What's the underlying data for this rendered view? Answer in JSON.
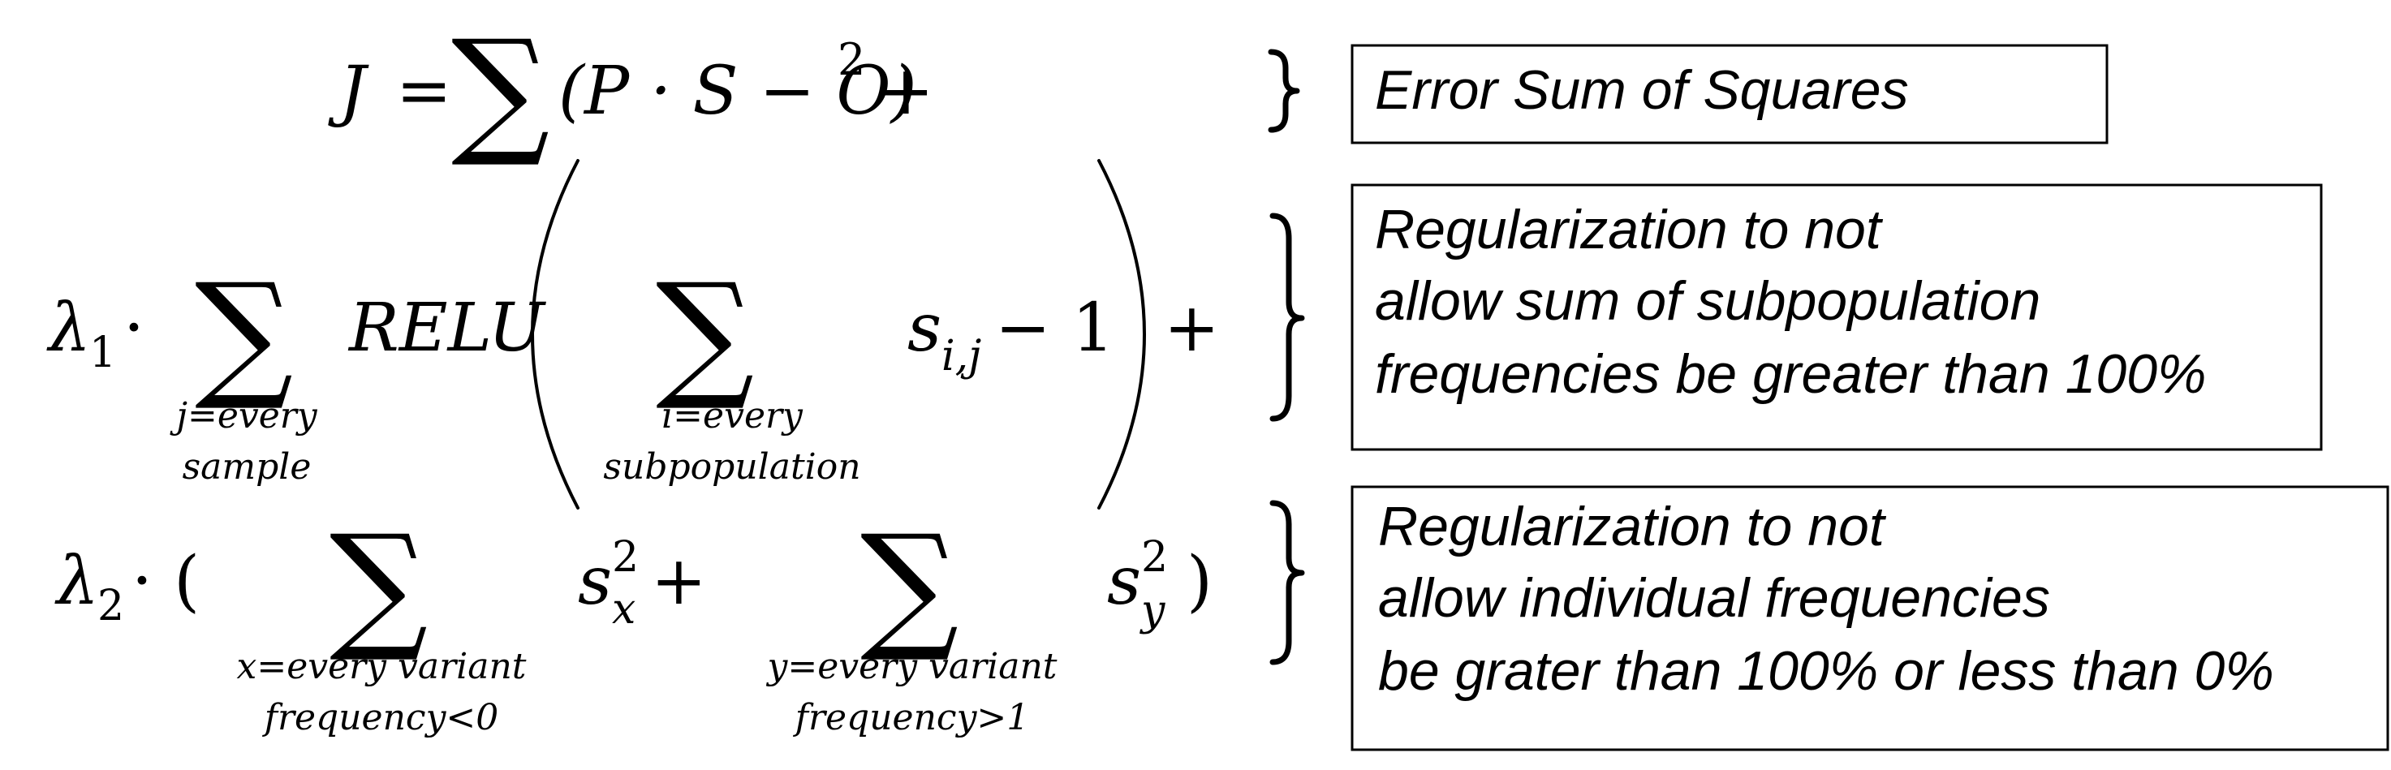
{
  "equation": {
    "line1": {
      "J": "J",
      "equals": "=",
      "sigma": "∑",
      "body": "(P · S − O)",
      "power": "2",
      "plus": "+"
    },
    "line2": {
      "lambda": "λ",
      "lambda_sub": "1",
      "dot": "·",
      "outer_sigma": "∑",
      "outer_sub_line1": "j=every",
      "outer_sub_line2": "sample",
      "relu": "RELU",
      "inner_sigma": "∑",
      "inner_sub_line1": "i=every",
      "inner_sub_line2": "subpopulation",
      "s": "s",
      "s_sub": "i,j",
      "minus_one": "− 1",
      "plus": "+"
    },
    "line3": {
      "lambda": "λ",
      "lambda_sub": "2",
      "dot_paren": "· (",
      "sigma_x": "∑",
      "x_sub_line1": "x=every variant",
      "x_sub_line2": "frequency<0",
      "s_x": "s",
      "s_x_sup": "2",
      "s_x_sub": "x",
      "plus": "+",
      "sigma_y": "∑",
      "y_sub_line1": "y=every variant",
      "y_sub_line2": "frequency>1",
      "s_y": "s",
      "s_y_sup": "2",
      "s_y_sub": "y",
      "close_paren": ")"
    }
  },
  "annotations": [
    {
      "lines": [
        "Error Sum of  Squares"
      ]
    },
    {
      "lines": [
        "Regularization to not",
        "allow sum of subpopulation",
        "frequencies be greater than 100%"
      ]
    },
    {
      "lines": [
        "Regularization to not",
        "allow individual frequencies",
        "be grater than 100% or less than 0%"
      ]
    }
  ],
  "colors": {
    "ink": "#000000",
    "background": "#ffffff"
  }
}
